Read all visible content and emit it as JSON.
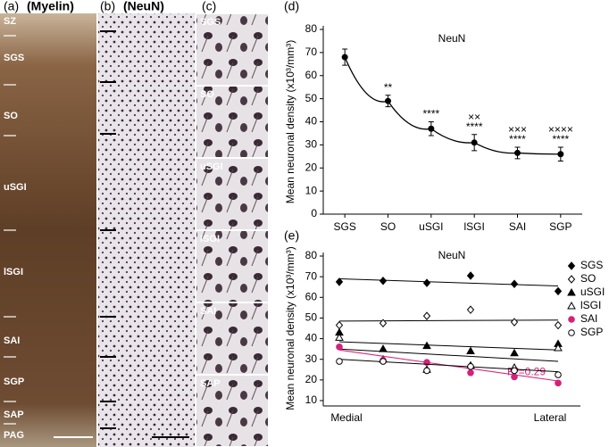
{
  "panels": {
    "a": {
      "label": "(a)",
      "title": "(Myelin)",
      "layers": [
        "SZ",
        "SGS",
        "SO",
        "uSGI",
        "lSGI",
        "SAI",
        "SGP",
        "SAP",
        "PAG"
      ]
    },
    "b": {
      "label": "(b)",
      "title": "(NeuN)"
    },
    "c": {
      "label": "(c)",
      "layers": [
        "SGS",
        "SO",
        "uSGI",
        "lSGI",
        "SAI",
        "SAP"
      ]
    }
  },
  "chart_data": [
    {
      "type": "line",
      "panel": "(d)",
      "title": "NeuN",
      "y_label": "Mean neuronal density (x10³/mm³)",
      "categories": [
        "SGS",
        "SO",
        "uSGI",
        "lSGI",
        "SAI",
        "SGP"
      ],
      "values": [
        68,
        49,
        37,
        31,
        26.5,
        26
      ],
      "errors": [
        3.5,
        2.5,
        3,
        3.5,
        2.5,
        3
      ],
      "color": "#000000",
      "annotations": [
        {
          "category": "SO",
          "lines": [
            "**"
          ]
        },
        {
          "category": "uSGI",
          "lines": [
            "****"
          ]
        },
        {
          "category": "lSGI",
          "lines": [
            "××",
            "****"
          ]
        },
        {
          "category": "SAI",
          "lines": [
            "×××",
            "****"
          ]
        },
        {
          "category": "SGP",
          "lines": [
            "××××",
            "****"
          ]
        }
      ],
      "ylim": [
        0,
        80
      ],
      "yticks": [
        0,
        10,
        20,
        30,
        40,
        50,
        60,
        70,
        80
      ]
    },
    {
      "type": "scatter",
      "panel": "(e)",
      "title": "NeuN",
      "y_label": "Mean neuronal density (x10³/mm³)",
      "categories": [
        "Medial",
        null,
        null,
        null,
        null,
        "Lateral"
      ],
      "series": [
        {
          "name": "SGS",
          "color": "#000000",
          "marker": "diamond",
          "filled": true,
          "values": [
            67.5,
            68,
            67,
            70.5,
            66.5,
            63
          ],
          "trend": [
            69,
            65.5
          ]
        },
        {
          "name": "SO",
          "color": "#000000",
          "marker": "diamond",
          "filled": false,
          "values": [
            46.5,
            47.5,
            51,
            54,
            48,
            46.5
          ],
          "trend": [
            48.5,
            49
          ]
        },
        {
          "name": "uSGI",
          "color": "#000000",
          "marker": "triangle",
          "filled": true,
          "values": [
            43,
            35,
            36.5,
            34,
            33,
            37.5
          ],
          "trend": [
            38.5,
            34.5
          ]
        },
        {
          "name": "lSGI",
          "color": "#000000",
          "marker": "triangle",
          "filled": false,
          "values": [
            40.5,
            30,
            25,
            27,
            26,
            35.5
          ],
          "trend": [
            35,
            29
          ]
        },
        {
          "name": "SAI",
          "color": "#d6217a",
          "marker": "circle",
          "filled": true,
          "values": [
            36,
            29.5,
            28.5,
            23.5,
            21.5,
            18.5
          ],
          "trend": [
            34.5,
            19.5
          ],
          "annotation": "R²=0.29"
        },
        {
          "name": "SGP",
          "color": "#000000",
          "marker": "circle",
          "filled": false,
          "values": [
            29,
            29,
            24.5,
            26.5,
            24.5,
            22.5
          ],
          "trend": [
            30,
            24
          ]
        }
      ],
      "ylim": [
        10,
        80
      ],
      "yticks": [
        10,
        20,
        30,
        40,
        50,
        60,
        70,
        80
      ],
      "legend": "right"
    }
  ]
}
